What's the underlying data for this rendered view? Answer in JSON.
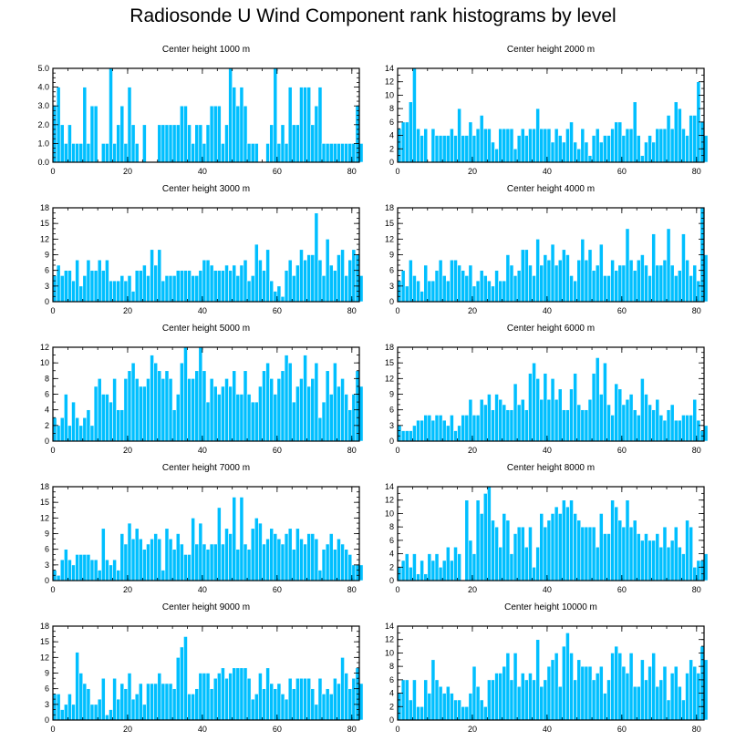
{
  "title": "Radiosonde U Wind Component rank histograms by level",
  "colors": {
    "bar": "#00BFFF",
    "axis": "#000000"
  },
  "chart_data": [
    {
      "type": "bar",
      "title": "Center height 1000 m",
      "xlim": [
        0,
        82
      ],
      "ylim": [
        0,
        5
      ],
      "xticks": [
        0,
        20,
        40,
        60,
        80
      ],
      "yticks": [
        0,
        1,
        2,
        3,
        4,
        5
      ],
      "ytick_labels": [
        "0.0",
        "1.0",
        "2.0",
        "3.0",
        "4.0",
        "5.0"
      ],
      "values": [
        3,
        4,
        2,
        1,
        2,
        1,
        1,
        1,
        4,
        1,
        3,
        3,
        0,
        1,
        1,
        5,
        1,
        2,
        3,
        1,
        4,
        2,
        1,
        0,
        2,
        0,
        0,
        0,
        2,
        2,
        2,
        2,
        2,
        2,
        3,
        3,
        2,
        1,
        2,
        2,
        1,
        2,
        3,
        3,
        3,
        1,
        2,
        5,
        4,
        3,
        4,
        3,
        1,
        1,
        1,
        0,
        0,
        1,
        2,
        5,
        1,
        2,
        1,
        4,
        2,
        2,
        4,
        4,
        4,
        2,
        3,
        4,
        1,
        1,
        1,
        1,
        1,
        1,
        1,
        1,
        1,
        3,
        1
      ]
    },
    {
      "type": "bar",
      "title": "Center height 2000 m",
      "xlim": [
        0,
        82
      ],
      "ylim": [
        0,
        14
      ],
      "xticks": [
        0,
        20,
        40,
        60,
        80
      ],
      "yticks": [
        0,
        2,
        4,
        6,
        8,
        10,
        12,
        14
      ],
      "ytick_labels": [
        "0",
        "2",
        "4",
        "6",
        "8",
        "10",
        "12",
        "14"
      ],
      "values": [
        5,
        6,
        6,
        9,
        14,
        5,
        4,
        5,
        0,
        5,
        4,
        4,
        4,
        4,
        5,
        4,
        8,
        4,
        4,
        6,
        4,
        5,
        7,
        5,
        5,
        3,
        2,
        5,
        5,
        5,
        5,
        2,
        4,
        5,
        4,
        5,
        5,
        8,
        5,
        5,
        5,
        3,
        5,
        4,
        3,
        5,
        6,
        3,
        2,
        5,
        3,
        1,
        4,
        5,
        3,
        4,
        4,
        5,
        6,
        6,
        4,
        5,
        5,
        9,
        4,
        1,
        3,
        4,
        3,
        5,
        5,
        5,
        7,
        5,
        9,
        8,
        5,
        4,
        7,
        7,
        12,
        6,
        4
      ]
    },
    {
      "type": "bar",
      "title": "Center height 3000 m",
      "xlim": [
        0,
        82
      ],
      "ylim": [
        0,
        18
      ],
      "xticks": [
        0,
        20,
        40,
        60,
        80
      ],
      "yticks": [
        0,
        3,
        6,
        9,
        12,
        15,
        18
      ],
      "ytick_labels": [
        "0",
        "3",
        "6",
        "9",
        "12",
        "15",
        "18"
      ],
      "values": [
        5,
        7,
        5,
        6,
        6,
        4,
        8,
        3,
        5,
        8,
        6,
        6,
        8,
        6,
        8,
        4,
        4,
        4,
        5,
        4,
        5,
        2,
        6,
        6,
        7,
        5,
        10,
        7,
        10,
        4,
        5,
        5,
        5,
        6,
        6,
        6,
        6,
        5,
        5,
        6,
        8,
        8,
        7,
        6,
        6,
        6,
        7,
        6,
        7,
        5,
        7,
        8,
        4,
        5,
        11,
        8,
        6,
        10,
        4,
        2,
        3,
        1,
        6,
        8,
        5,
        7,
        10,
        8,
        9,
        9,
        17,
        8,
        5,
        12,
        7,
        6,
        9,
        10,
        5,
        8,
        10,
        9,
        5
      ]
    },
    {
      "type": "bar",
      "title": "Center height 4000 m",
      "xlim": [
        0,
        82
      ],
      "ylim": [
        0,
        18
      ],
      "xticks": [
        0,
        20,
        40,
        60,
        80
      ],
      "yticks": [
        0,
        3,
        6,
        9,
        12,
        15,
        18
      ],
      "ytick_labels": [
        "0",
        "3",
        "6",
        "9",
        "12",
        "15",
        "18"
      ],
      "values": [
        4,
        6,
        3,
        8,
        5,
        4,
        2,
        7,
        4,
        4,
        6,
        8,
        5,
        4,
        8,
        8,
        7,
        6,
        5,
        7,
        3,
        4,
        6,
        5,
        4,
        3,
        6,
        4,
        4,
        9,
        7,
        5,
        6,
        10,
        10,
        7,
        5,
        12,
        7,
        9,
        8,
        11,
        7,
        8,
        10,
        9,
        5,
        4,
        8,
        12,
        8,
        10,
        6,
        7,
        11,
        5,
        5,
        8,
        6,
        7,
        7,
        14,
        8,
        6,
        8,
        9,
        7,
        5,
        13,
        7,
        7,
        8,
        14,
        7,
        5,
        6,
        13,
        8,
        5,
        7,
        4,
        18,
        9
      ]
    },
    {
      "type": "bar",
      "title": "Center height 5000 m",
      "xlim": [
        0,
        82
      ],
      "ylim": [
        0,
        12
      ],
      "xticks": [
        0,
        20,
        40,
        60,
        80
      ],
      "yticks": [
        0,
        2,
        4,
        6,
        8,
        10,
        12
      ],
      "ytick_labels": [
        "0",
        "2",
        "4",
        "6",
        "8",
        "10",
        "12"
      ],
      "values": [
        3,
        2,
        3,
        6,
        2,
        5,
        3,
        2,
        3,
        4,
        2,
        7,
        8,
        6,
        6,
        5,
        8,
        4,
        4,
        8,
        9,
        10,
        8,
        7,
        7,
        8,
        11,
        10,
        9,
        8,
        9,
        8,
        4,
        6,
        10,
        12,
        8,
        8,
        9,
        12,
        9,
        5,
        8,
        7,
        6,
        7,
        8,
        7,
        9,
        6,
        6,
        9,
        6,
        5,
        5,
        7,
        9,
        10,
        8,
        6,
        8,
        9,
        11,
        10,
        5,
        7,
        8,
        11,
        7,
        8,
        10,
        3,
        5,
        9,
        6,
        10,
        7,
        8,
        6,
        4,
        6,
        9,
        7
      ]
    },
    {
      "type": "bar",
      "title": "Center height 6000 m",
      "xlim": [
        0,
        82
      ],
      "ylim": [
        0,
        18
      ],
      "xticks": [
        0,
        20,
        40,
        60,
        80
      ],
      "yticks": [
        0,
        3,
        6,
        9,
        12,
        15,
        18
      ],
      "ytick_labels": [
        "0",
        "3",
        "6",
        "9",
        "12",
        "15",
        "18"
      ],
      "values": [
        3,
        2,
        2,
        2,
        3,
        4,
        4,
        5,
        5,
        4,
        5,
        5,
        4,
        3,
        5,
        2,
        3,
        5,
        5,
        8,
        5,
        5,
        8,
        7,
        9,
        6,
        9,
        8,
        7,
        6,
        6,
        11,
        7,
        8,
        6,
        13,
        15,
        12,
        8,
        13,
        8,
        12,
        8,
        10,
        6,
        6,
        10,
        13,
        7,
        6,
        6,
        8,
        13,
        16,
        9,
        15,
        7,
        5,
        11,
        10,
        7,
        8,
        9,
        6,
        5,
        12,
        9,
        7,
        6,
        8,
        5,
        4,
        6,
        7,
        4,
        4,
        5,
        5,
        5,
        8,
        4,
        2,
        3
      ]
    },
    {
      "type": "bar",
      "title": "Center height 7000 m",
      "xlim": [
        0,
        82
      ],
      "ylim": [
        0,
        18
      ],
      "xticks": [
        0,
        20,
        40,
        60,
        80
      ],
      "yticks": [
        0,
        3,
        6,
        9,
        12,
        15,
        18
      ],
      "ytick_labels": [
        "0",
        "3",
        "6",
        "9",
        "12",
        "15",
        "18"
      ],
      "values": [
        2,
        1,
        4,
        6,
        4,
        3,
        5,
        5,
        5,
        5,
        4,
        4,
        2,
        10,
        4,
        3,
        4,
        2,
        9,
        7,
        11,
        8,
        10,
        8,
        6,
        7,
        8,
        9,
        8,
        2,
        10,
        8,
        6,
        9,
        7,
        5,
        5,
        12,
        7,
        11,
        7,
        6,
        7,
        7,
        14,
        7,
        10,
        9,
        16,
        6,
        16,
        7,
        6,
        10,
        12,
        11,
        7,
        8,
        10,
        9,
        8,
        7,
        9,
        10,
        6,
        10,
        8,
        7,
        9,
        9,
        8,
        2,
        6,
        7,
        9,
        6,
        8,
        7,
        6,
        5,
        3,
        3,
        3
      ]
    },
    {
      "type": "bar",
      "title": "Center height 8000 m",
      "xlim": [
        0,
        82
      ],
      "ylim": [
        0,
        14
      ],
      "xticks": [
        0,
        20,
        40,
        60,
        80
      ],
      "yticks": [
        0,
        2,
        4,
        6,
        8,
        10,
        12,
        14
      ],
      "ytick_labels": [
        "0",
        "2",
        "4",
        "6",
        "8",
        "10",
        "12",
        "14"
      ],
      "values": [
        2,
        3,
        4,
        2,
        4,
        1,
        3,
        1,
        4,
        3,
        4,
        2,
        3,
        5,
        3,
        5,
        4,
        0,
        12,
        6,
        4,
        12,
        10,
        13,
        14,
        9,
        8,
        5,
        10,
        9,
        4,
        7,
        8,
        8,
        5,
        8,
        2,
        5,
        10,
        8,
        9,
        10,
        11,
        10,
        12,
        11,
        12,
        10,
        9,
        8,
        8,
        8,
        8,
        5,
        10,
        7,
        7,
        12,
        11,
        9,
        8,
        12,
        8,
        9,
        7,
        6,
        7,
        6,
        6,
        7,
        5,
        8,
        5,
        6,
        8,
        5,
        4,
        9,
        8,
        2,
        3,
        3,
        4
      ]
    },
    {
      "type": "bar",
      "title": "Center height 9000 m",
      "xlim": [
        0,
        82
      ],
      "ylim": [
        0,
        18
      ],
      "xticks": [
        0,
        20,
        40,
        60,
        80
      ],
      "yticks": [
        0,
        3,
        6,
        9,
        12,
        15,
        18
      ],
      "ytick_labels": [
        "0",
        "3",
        "6",
        "9",
        "12",
        "15",
        "18"
      ],
      "values": [
        5,
        5,
        2,
        3,
        5,
        3,
        13,
        9,
        7,
        6,
        3,
        3,
        4,
        8,
        1,
        2,
        8,
        4,
        7,
        6,
        9,
        4,
        5,
        7,
        3,
        7,
        7,
        7,
        9,
        7,
        7,
        7,
        6,
        12,
        14,
        16,
        5,
        5,
        6,
        9,
        9,
        9,
        6,
        8,
        9,
        10,
        8,
        9,
        10,
        10,
        10,
        10,
        8,
        4,
        5,
        9,
        6,
        10,
        7,
        6,
        7,
        5,
        4,
        8,
        6,
        8,
        8,
        8,
        8,
        6,
        3,
        8,
        5,
        6,
        5,
        8,
        7,
        12,
        9,
        6,
        8,
        10,
        7
      ]
    },
    {
      "type": "bar",
      "title": "Center height 10000 m",
      "xlim": [
        0,
        82
      ],
      "ylim": [
        0,
        14
      ],
      "xticks": [
        0,
        20,
        40,
        60,
        80
      ],
      "yticks": [
        0,
        2,
        4,
        6,
        8,
        10,
        12,
        14
      ],
      "ytick_labels": [
        "0",
        "2",
        "4",
        "6",
        "8",
        "10",
        "12",
        "14"
      ],
      "values": [
        4,
        6,
        6,
        3,
        6,
        2,
        2,
        6,
        4,
        9,
        6,
        5,
        4,
        5,
        4,
        3,
        3,
        2,
        2,
        4,
        8,
        5,
        3,
        2,
        6,
        6,
        7,
        7,
        8,
        10,
        6,
        10,
        5,
        7,
        6,
        7,
        6,
        12,
        5,
        6,
        8,
        9,
        10,
        5,
        11,
        13,
        10,
        6,
        9,
        8,
        8,
        8,
        6,
        7,
        8,
        4,
        6,
        10,
        11,
        10,
        8,
        7,
        10,
        5,
        5,
        9,
        6,
        8,
        10,
        5,
        6,
        8,
        3,
        7,
        8,
        5,
        3,
        7,
        9,
        8,
        7,
        11,
        9
      ]
    }
  ]
}
